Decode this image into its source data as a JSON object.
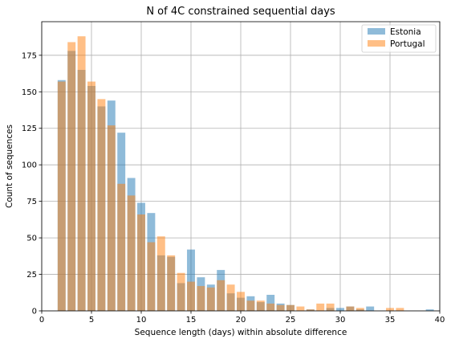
{
  "chart_data": {
    "type": "bar",
    "title": "N of 4C constrained sequential days",
    "xlabel": "Sequence length (days) within absolute difference",
    "ylabel": "Count of sequences",
    "xlim": [
      0,
      40
    ],
    "ylim": [
      0,
      198
    ],
    "xticks": [
      0,
      5,
      10,
      15,
      20,
      25,
      30,
      35,
      40
    ],
    "yticks": [
      0,
      25,
      50,
      75,
      100,
      125,
      150,
      175
    ],
    "grid": true,
    "legend_position": "top-right",
    "series": [
      {
        "name": "Estonia",
        "color": "#1f77b4",
        "x": [
          2,
          3,
          4,
          5,
          6,
          7,
          8,
          9,
          10,
          11,
          12,
          13,
          14,
          15,
          16,
          17,
          18,
          19,
          20,
          21,
          22,
          23,
          24,
          25,
          27,
          29,
          30,
          31,
          32,
          33,
          39
        ],
        "values": [
          158,
          178,
          165,
          154,
          140,
          144,
          122,
          91,
          74,
          67,
          38,
          37,
          19,
          42,
          23,
          18,
          28,
          12,
          9,
          10,
          6,
          11,
          5,
          4,
          1,
          2,
          2,
          3,
          1,
          3,
          1
        ]
      },
      {
        "name": "Portugal",
        "color": "#ff7f0e",
        "x": [
          2,
          3,
          4,
          5,
          6,
          7,
          8,
          9,
          10,
          11,
          12,
          13,
          14,
          15,
          16,
          17,
          18,
          19,
          20,
          21,
          22,
          23,
          24,
          25,
          26,
          27,
          28,
          29,
          31,
          32,
          35,
          36
        ],
        "values": [
          157,
          184,
          188,
          157,
          145,
          127,
          87,
          79,
          66,
          47,
          51,
          38,
          26,
          20,
          17,
          16,
          21,
          18,
          13,
          7,
          7,
          5,
          4,
          4,
          3,
          1,
          5,
          5,
          3,
          2,
          2,
          2
        ]
      }
    ]
  }
}
